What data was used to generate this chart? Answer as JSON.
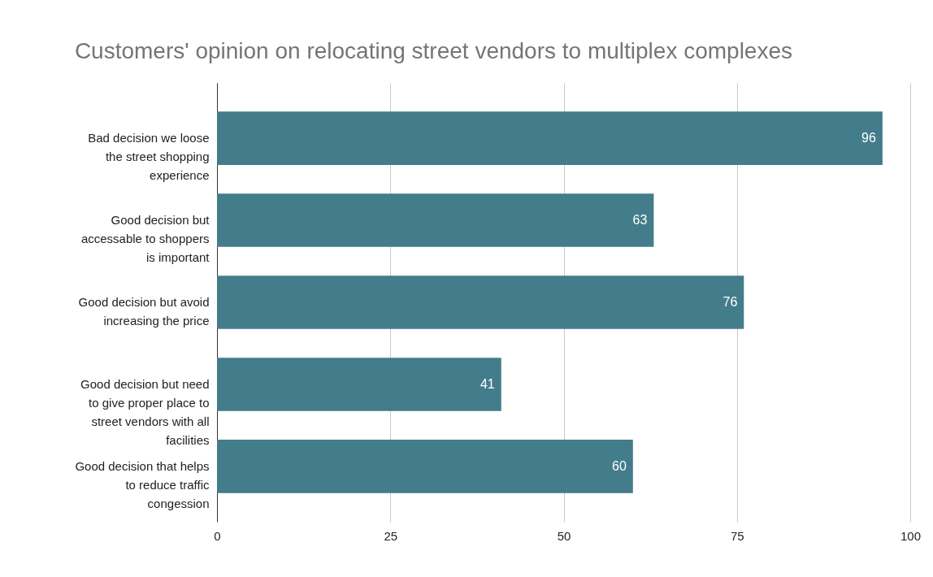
{
  "chart_data": {
    "type": "bar",
    "orientation": "horizontal",
    "title": "Customers' opinion on relocating street vendors to multiplex complexes",
    "categories": [
      "Bad decision we loose the street shopping experience",
      "Good decision but accessable to shoppers is important",
      "Good decision but avoid increasing the price",
      "Good decision but need to give proper place to street vendors with all facilities",
      "Good decision that helps to reduce traffic congession"
    ],
    "values": [
      96,
      63,
      76,
      41,
      60
    ],
    "color": "#437c8b",
    "xlim": [
      0,
      100
    ],
    "xticks": [
      0,
      25,
      50,
      75,
      100
    ],
    "grid": "x",
    "data_labels": true
  }
}
